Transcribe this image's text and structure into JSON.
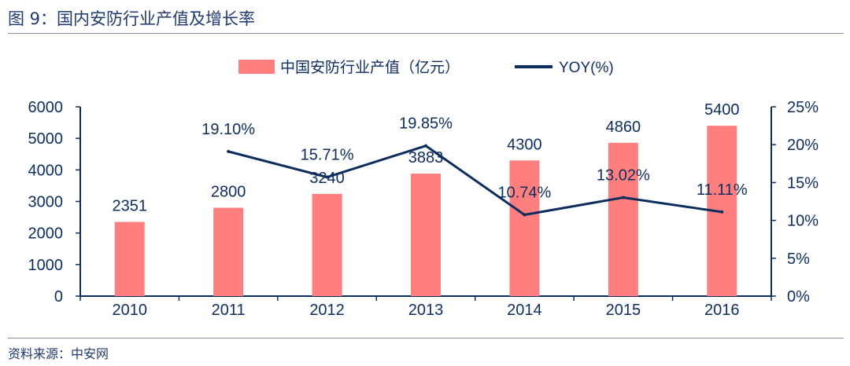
{
  "title": "图 9：国内安防行业产值及增长率",
  "source": "资料来源：中安网",
  "chart_data": {
    "type": "bar",
    "categories": [
      "2010",
      "2011",
      "2012",
      "2013",
      "2014",
      "2015",
      "2016"
    ],
    "series": [
      {
        "name": "中国安防行业产值（亿元）",
        "type": "bar",
        "axis": "left",
        "values": [
          2351,
          2800,
          3240,
          3883,
          4300,
          4860,
          5400
        ],
        "labels": [
          "2351",
          "2800",
          "3240",
          "3883",
          "4300",
          "4860",
          "5400"
        ],
        "color": "#ff7f7f"
      },
      {
        "name": "YOY(%)",
        "type": "line",
        "axis": "right",
        "values": [
          null,
          19.1,
          15.71,
          19.85,
          10.74,
          13.02,
          11.11
        ],
        "labels": [
          "",
          "19.10%",
          "15.71%",
          "19.85%",
          "10.74%",
          "13.02%",
          "11.11%"
        ],
        "color": "#0d2d5e"
      }
    ],
    "y_left": {
      "min": 0,
      "max": 6000,
      "ticks": [
        "0",
        "1000",
        "2000",
        "3000",
        "4000",
        "5000",
        "6000"
      ]
    },
    "y_right": {
      "min": 0,
      "max": 25,
      "ticks": [
        "0%",
        "5%",
        "10%",
        "15%",
        "20%",
        "25%"
      ]
    },
    "legend": "top",
    "grid": false
  }
}
